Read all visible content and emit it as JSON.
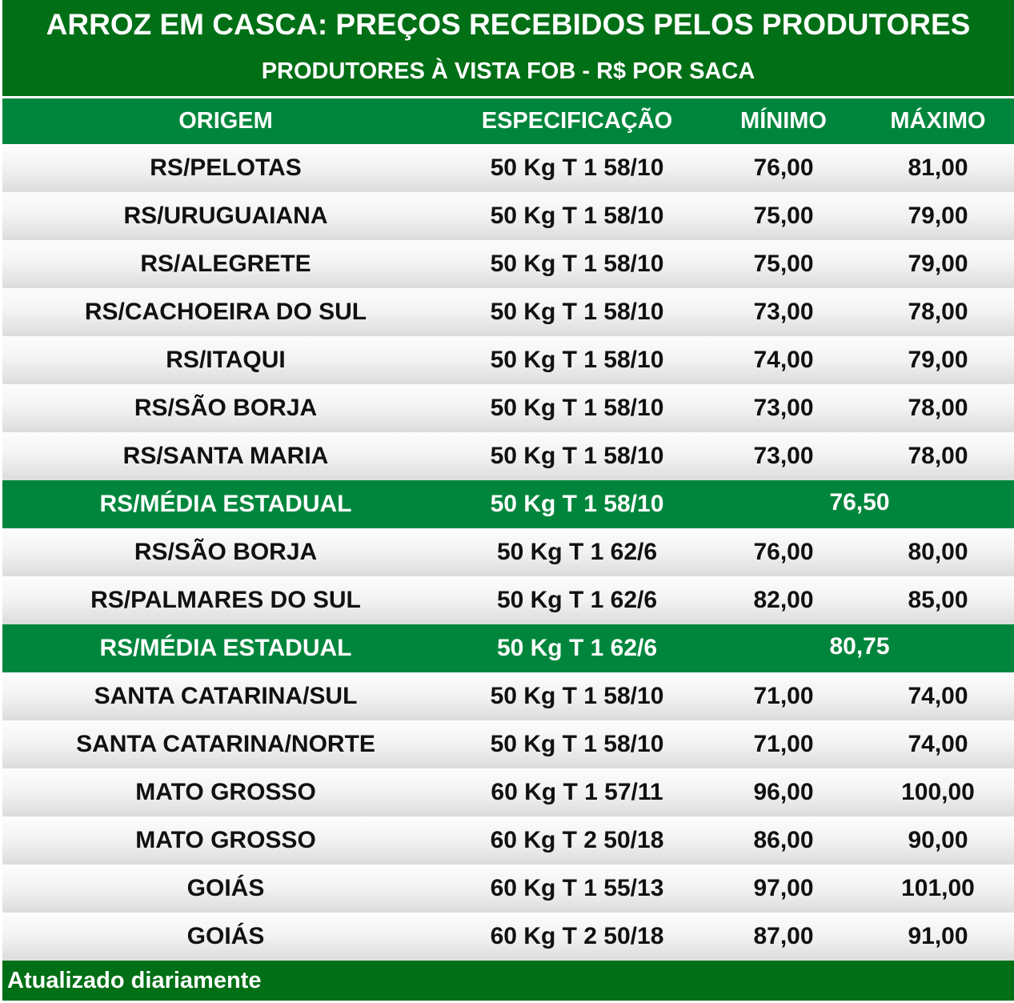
{
  "title": "ARROZ EM CASCA: PREÇOS RECEBIDOS PELOS PRODUTORES",
  "subtitle": "PRODUTORES À VISTA FOB - R$ POR SACA",
  "columns": {
    "origem": "ORIGEM",
    "especificacao": "ESPECIFICAÇÃO",
    "minimo": "MÍNIMO",
    "maximo": "MÁXIMO"
  },
  "rows": [
    {
      "origem": "RS/PELOTAS",
      "especificacao": "50 Kg T 1 58/10",
      "minimo": "76,00",
      "maximo": "81,00"
    },
    {
      "origem": "RS/URUGUAIANA",
      "especificacao": "50 Kg T 1 58/10",
      "minimo": "75,00",
      "maximo": "79,00"
    },
    {
      "origem": "RS/ALEGRETE",
      "especificacao": "50 Kg T 1 58/10",
      "minimo": "75,00",
      "maximo": "79,00"
    },
    {
      "origem": "RS/CACHOEIRA DO SUL",
      "especificacao": "50 Kg T 1 58/10",
      "minimo": "73,00",
      "maximo": "78,00"
    },
    {
      "origem": "RS/ITAQUI",
      "especificacao": "50 Kg T 1 58/10",
      "minimo": "74,00",
      "maximo": "79,00"
    },
    {
      "origem": "RS/SÃO BORJA",
      "especificacao": "50 Kg T 1 58/10",
      "minimo": "73,00",
      "maximo": "78,00"
    },
    {
      "origem": "RS/SANTA MARIA",
      "especificacao": "50 Kg T 1 58/10",
      "minimo": "73,00",
      "maximo": "78,00"
    },
    {
      "origem": "RS/MÉDIA ESTADUAL",
      "especificacao": "50 Kg T 1 58/10",
      "media": "76,50"
    },
    {
      "origem": "RS/SÃO BORJA",
      "especificacao": "50 Kg T 1 62/6",
      "minimo": "76,00",
      "maximo": "80,00"
    },
    {
      "origem": "RS/PALMARES DO SUL",
      "especificacao": "50 Kg T 1 62/6",
      "minimo": "82,00",
      "maximo": "85,00"
    },
    {
      "origem": "RS/MÉDIA ESTADUAL",
      "especificacao": "50 Kg T 1 62/6",
      "media": "80,75"
    },
    {
      "origem": "SANTA CATARINA/SUL",
      "especificacao": "50 Kg T 1 58/10",
      "minimo": "71,00",
      "maximo": "74,00"
    },
    {
      "origem": "SANTA CATARINA/NORTE",
      "especificacao": "50 Kg T 1 58/10",
      "minimo": "71,00",
      "maximo": "74,00"
    },
    {
      "origem": "MATO GROSSO",
      "especificacao": "60 Kg T 1 57/11",
      "minimo": "96,00",
      "maximo": "100,00"
    },
    {
      "origem": "MATO GROSSO",
      "especificacao": "60 Kg T 2 50/18",
      "minimo": "86,00",
      "maximo": "90,00"
    },
    {
      "origem": "GOIÁS",
      "especificacao": "60 Kg T 1 55/13",
      "minimo": "97,00",
      "maximo": "101,00"
    },
    {
      "origem": "GOIÁS",
      "especificacao": "60 Kg T 2 50/18",
      "minimo": "87,00",
      "maximo": "91,00"
    }
  ],
  "footer": "Atualizado diariamente",
  "colors": {
    "title_bg": "#016f16",
    "header_bg": "#00863c",
    "average_row_bg": "#00863c",
    "text_light": "#ffffff",
    "text_dark": "#111111"
  }
}
